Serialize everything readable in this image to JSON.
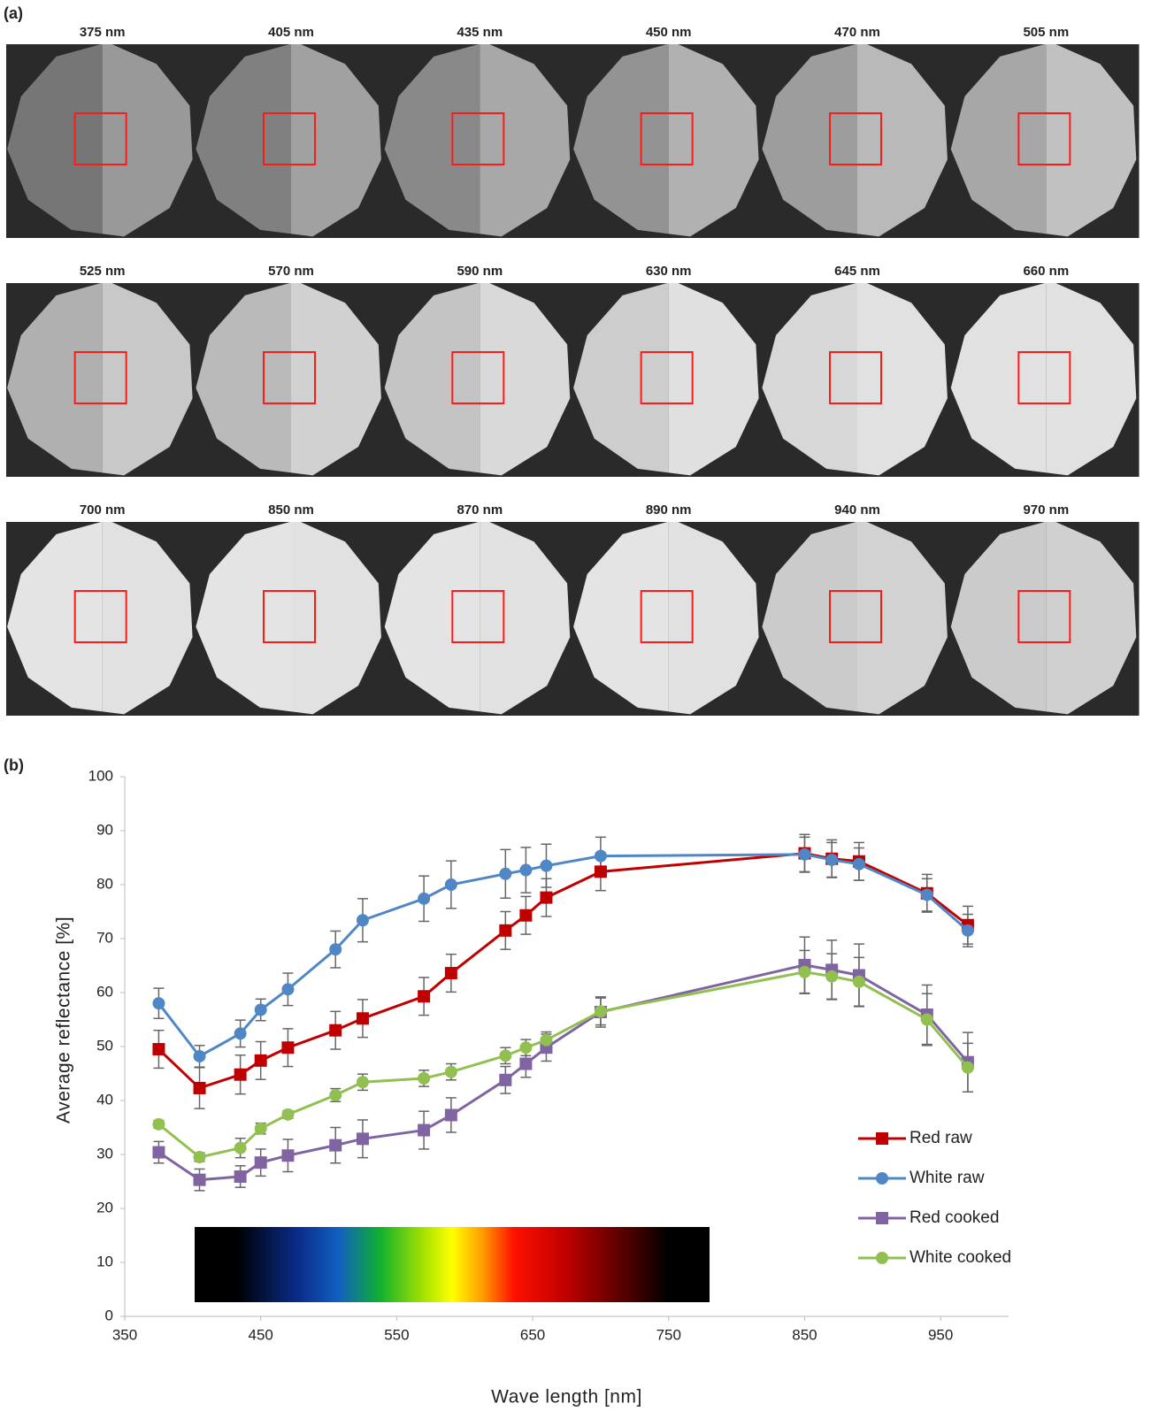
{
  "image_panel": {
    "label": "(a)",
    "wavelengths": [
      "375 nm",
      "405 nm",
      "435 nm",
      "450 nm",
      "470 nm",
      "505 nm",
      "525 nm",
      "570 nm",
      "590 nm",
      "630 nm",
      "645 nm",
      "660 nm",
      "700 nm",
      "850 nm",
      "870 nm",
      "890 nm",
      "940 nm",
      "970 nm"
    ]
  },
  "chart_data": {
    "type": "line",
    "panel_label": "(b)",
    "x_label": "Wave length [nm]",
    "y_label": "Average reflectance [%]",
    "x": [
      375,
      405,
      435,
      450,
      470,
      505,
      525,
      570,
      590,
      630,
      645,
      660,
      700,
      850,
      870,
      890,
      940,
      970
    ],
    "series": [
      {
        "name": "Red raw",
        "color": "#c00000",
        "marker": "square",
        "values": [
          49.5,
          42.3,
          44.8,
          47.4,
          49.8,
          53,
          55.2,
          59.3,
          63.6,
          71.5,
          74.3,
          77.6,
          82.4,
          85.8,
          84.8,
          84.3,
          78.4,
          72.5
        ],
        "errors": [
          3.5,
          3.8,
          3.6,
          3.5,
          3.5,
          3.5,
          3.5,
          3.5,
          3.5,
          3.5,
          3.5,
          3.5,
          3.5,
          3.5,
          3.5,
          3.5,
          3.5,
          3.5
        ]
      },
      {
        "name": "White raw",
        "color": "#4f87c6",
        "marker": "circle",
        "values": [
          58,
          48.2,
          52.4,
          56.8,
          60.6,
          68,
          73.4,
          77.4,
          80,
          82,
          82.7,
          83.5,
          85.3,
          85.6,
          84.6,
          83.8,
          78.1,
          71.5
        ],
        "errors": [
          2.8,
          2,
          2.5,
          2,
          3,
          3.4,
          4,
          4.2,
          4.4,
          4.5,
          4.2,
          4,
          3.5,
          3.2,
          3.2,
          3,
          3,
          3
        ]
      },
      {
        "name": "Red cooked",
        "color": "#8064a2",
        "marker": "square",
        "values": [
          30.4,
          25.3,
          25.9,
          28.5,
          29.8,
          31.7,
          32.9,
          34.5,
          37.3,
          43.8,
          46.8,
          49.8,
          56.4,
          65.1,
          64.2,
          63.2,
          55.9,
          47.1
        ],
        "errors": [
          2,
          2,
          2,
          2.5,
          3,
          3.3,
          3.5,
          3.5,
          3.2,
          2.5,
          2.5,
          2.5,
          2.8,
          5.2,
          5.5,
          5.8,
          5.5,
          5.5
        ]
      },
      {
        "name": "White cooked",
        "color": "#92c050",
        "marker": "circle",
        "values": [
          35.6,
          29.5,
          31.2,
          34.8,
          37.4,
          41,
          43.4,
          44.1,
          45.3,
          48.3,
          49.8,
          51.2,
          56.5,
          63.8,
          63,
          62,
          55,
          46.1
        ],
        "errors": [
          0.7,
          0.8,
          1.8,
          1,
          0.7,
          1.2,
          1.5,
          1.5,
          1.5,
          1.5,
          1.5,
          1.5,
          2.5,
          4,
          4.2,
          4.5,
          4.8,
          4.5
        ]
      }
    ],
    "xlim": [
      350,
      1000
    ],
    "xticks": [
      350,
      450,
      550,
      650,
      750,
      850,
      950
    ],
    "ylim": [
      0,
      100
    ],
    "yticks": [
      0,
      10,
      20,
      30,
      40,
      50,
      60,
      70,
      80,
      90,
      100
    ],
    "grid": false,
    "legend": "right"
  }
}
